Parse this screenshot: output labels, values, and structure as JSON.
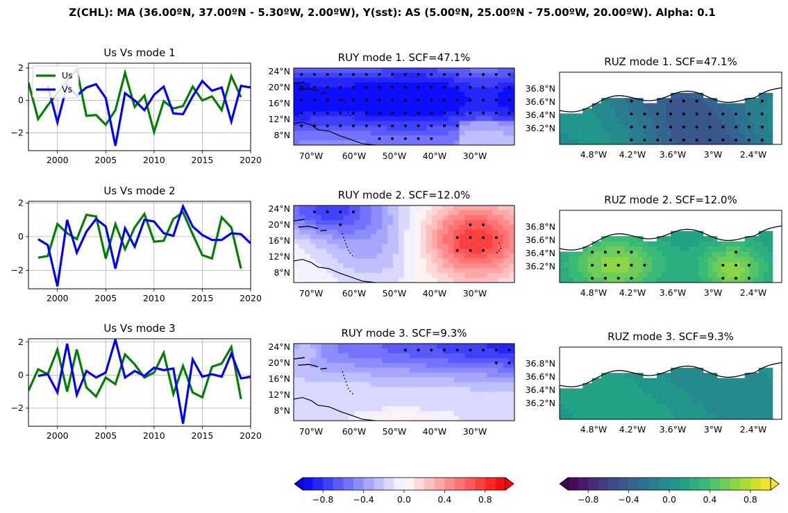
{
  "suptitle": "Z(CHL): MA (36.00ºN, 37.00ºN - 5.30ºW, 2.00ºW), Y(sst): AS (5.00ºN, 25.00ºN - 75.00ºW, 20.00ºW). Alpha: 0.1",
  "colors": {
    "us": "#008000",
    "vs": "#0000ff",
    "grid": "#b0b0b0"
  },
  "chart_data": [
    {
      "type": "line",
      "title": "Us Vs mode 1",
      "x": [
        1997,
        1998,
        1999,
        2000,
        2001,
        2002,
        2003,
        2004,
        2005,
        2006,
        2007,
        2008,
        2009,
        2010,
        2011,
        2012,
        2013,
        2014,
        2015,
        2016,
        2017,
        2018,
        2019,
        2020
      ],
      "series": [
        {
          "name": "Us",
          "values": [
            1.1,
            -1.15,
            -0.3,
            0.45,
            1.2,
            1.9,
            -0.95,
            -0.9,
            -1.5,
            -0.6,
            1.7,
            -0.4,
            0.3,
            -1.95,
            -0.05,
            -0.5,
            -0.35,
            0.85,
            0.0,
            0.25,
            -0.6,
            1.5,
            0.2,
            null
          ]
        },
        {
          "name": "Vs",
          "values": [
            null,
            null,
            0.9,
            -1.35,
            0.95,
            0.3,
            0.8,
            1.0,
            0.15,
            -2.8,
            0.45,
            0.0,
            -0.6,
            0.35,
            0.85,
            -0.8,
            -0.85,
            0.25,
            1.2,
            0.6,
            0.8,
            -1.3,
            0.9,
            0.8
          ]
        }
      ],
      "xlim": [
        1997,
        2020
      ],
      "ylim": [
        -3.1,
        2.3
      ],
      "xticks": [
        "2000",
        "2005",
        "2010",
        "2015",
        "2020"
      ],
      "yticks": [
        "2",
        "0",
        "−2"
      ],
      "grid": true,
      "legend": "top-left"
    },
    {
      "type": "line",
      "title": "Us Vs mode 2",
      "x": [
        1997,
        1998,
        1999,
        2000,
        2001,
        2002,
        2003,
        2004,
        2005,
        2006,
        2007,
        2008,
        2009,
        2010,
        2011,
        2012,
        2013,
        2014,
        2015,
        2016,
        2017,
        2018,
        2019,
        2020
      ],
      "series": [
        {
          "name": "Us",
          "values": [
            null,
            -1.25,
            -1.15,
            0.75,
            0.2,
            -0.15,
            1.3,
            1.2,
            -1.3,
            0.75,
            -0.75,
            0.55,
            1.35,
            -0.3,
            -0.25,
            1.05,
            1.45,
            0.15,
            -1.1,
            -1.3,
            1.15,
            0.55,
            -1.9,
            null
          ]
        },
        {
          "name": "Vs",
          "values": [
            null,
            -0.15,
            -0.5,
            -2.95,
            1.0,
            -0.95,
            0.3,
            1.05,
            0.6,
            -1.9,
            0.5,
            -0.6,
            1.0,
            0.9,
            0.2,
            0.05,
            1.8,
            0.6,
            0.1,
            -0.2,
            -0.2,
            0.2,
            0.15,
            -0.4
          ]
        }
      ],
      "xlim": [
        1997,
        2020
      ],
      "ylim": [
        -3.1,
        2.1
      ],
      "xticks": [
        "2000",
        "2005",
        "2010",
        "2015",
        "2020"
      ],
      "yticks": [
        "2",
        "0",
        "−2"
      ],
      "grid": true
    },
    {
      "type": "line",
      "title": "Us Vs mode 3",
      "x": [
        1997,
        1998,
        1999,
        2000,
        2001,
        2002,
        2003,
        2004,
        2005,
        2006,
        2007,
        2008,
        2009,
        2010,
        2011,
        2012,
        2013,
        2014,
        2015,
        2016,
        2017,
        2018,
        2019,
        2020
      ],
      "series": [
        {
          "name": "Us",
          "values": [
            -0.95,
            0.35,
            0.05,
            1.55,
            -1.0,
            1.55,
            -0.75,
            -1.3,
            -0.15,
            -0.55,
            1.25,
            0.65,
            -0.15,
            0.15,
            1.35,
            -1.15,
            0.55,
            -1.05,
            -1.35,
            0.5,
            0.7,
            1.7,
            -1.45,
            null
          ]
        },
        {
          "name": "Vs",
          "values": [
            null,
            -0.05,
            0.05,
            -1.05,
            1.9,
            -1.2,
            0.25,
            -0.15,
            0.15,
            2.15,
            -0.15,
            0.25,
            -0.05,
            0.45,
            0.3,
            0.4,
            -2.95,
            0.95,
            -0.1,
            0.05,
            -0.1,
            1.3,
            -0.2,
            -0.1
          ]
        }
      ],
      "xlim": [
        1997,
        2020
      ],
      "ylim": [
        -3.1,
        2.2
      ],
      "xticks": [
        "2000",
        "2005",
        "2010",
        "2015",
        "2020"
      ],
      "yticks": [
        "2",
        "0",
        "−2"
      ],
      "grid": true
    },
    {
      "type": "heatmap",
      "title": "RUY mode 1. SCF=47.1%",
      "colormap": "bwr",
      "xticks": [
        "70°W",
        "60°W",
        "50°W",
        "40°W",
        "30°W"
      ],
      "yticks": [
        "24°N",
        "20°N",
        "16°N",
        "12°N",
        "8°N"
      ],
      "extent": {
        "lon": [
          -75,
          -20
        ],
        "lat": [
          5,
          25
        ]
      },
      "significance_dots": true
    },
    {
      "type": "heatmap",
      "title": "RUY mode 2. SCF=12.0%",
      "colormap": "bwr",
      "xticks": [
        "70°W",
        "60°W",
        "50°W",
        "40°W",
        "30°W"
      ],
      "yticks": [
        "24°N",
        "20°N",
        "16°N",
        "12°N",
        "8°N"
      ],
      "extent": {
        "lon": [
          -75,
          -20
        ],
        "lat": [
          5,
          25
        ]
      },
      "significance_dots": true
    },
    {
      "type": "heatmap",
      "title": "RUY mode 3. SCF=9.3%",
      "colormap": "bwr",
      "xticks": [
        "70°W",
        "60°W",
        "50°W",
        "40°W",
        "30°W"
      ],
      "yticks": [
        "24°N",
        "20°N",
        "16°N",
        "12°N",
        "8°N"
      ],
      "extent": {
        "lon": [
          -75,
          -20
        ],
        "lat": [
          5,
          25
        ]
      },
      "significance_dots": true
    },
    {
      "type": "heatmap",
      "title": "RUZ mode 1. SCF=47.1%",
      "colormap": "viridis",
      "xticks": [
        "4.8°W",
        "4.2°W",
        "3.6°W",
        "3°W",
        "2.4°W"
      ],
      "yticks": [
        "36.8°N",
        "36.6°N",
        "36.4°N",
        "36.2°N"
      ],
      "extent": {
        "lon": [
          -5.3,
          -2.0
        ],
        "lat": [
          36.0,
          37.0
        ]
      },
      "significance_dots": true
    },
    {
      "type": "heatmap",
      "title": "RUZ mode 2. SCF=12.0%",
      "colormap": "viridis",
      "xticks": [
        "4.8°W",
        "4.2°W",
        "3.6°W",
        "3°W",
        "2.4°W"
      ],
      "yticks": [
        "36.8°N",
        "36.6°N",
        "36.4°N",
        "36.2°N"
      ],
      "extent": {
        "lon": [
          -5.3,
          -2.0
        ],
        "lat": [
          36.0,
          37.0
        ]
      },
      "significance_dots": true
    },
    {
      "type": "heatmap",
      "title": "RUZ mode 3. SCF=9.3%",
      "colormap": "viridis",
      "xticks": [
        "4.8°W",
        "4.2°W",
        "3.6°W",
        "3°W",
        "2.4°W"
      ],
      "yticks": [
        "36.8°N",
        "36.6°N",
        "36.4°N",
        "36.2°N"
      ],
      "extent": {
        "lon": [
          -5.3,
          -2.0
        ],
        "lat": [
          36.0,
          37.0
        ]
      },
      "significance_dots": false
    }
  ],
  "colorbars": [
    {
      "colormap": "bwr",
      "ticks": [
        "−0.8",
        "−0.4",
        "0.0",
        "0.4",
        "0.8"
      ],
      "range": [
        -1,
        1
      ]
    },
    {
      "colormap": "viridis",
      "ticks": [
        "−0.8",
        "−0.4",
        "0.0",
        "0.4",
        "0.8"
      ],
      "range": [
        -1,
        1
      ]
    }
  ]
}
